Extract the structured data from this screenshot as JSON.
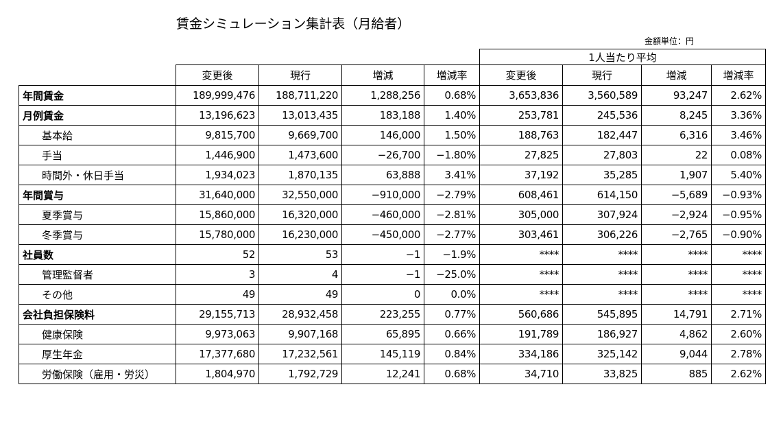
{
  "title": "賃金シミュレーション集計表（月給者）",
  "unit_label": "金額単位：円",
  "group_header": "1人当たり平均",
  "columns": [
    "変更後",
    "現行",
    "増減",
    "増減率",
    "変更後",
    "現行",
    "増減",
    "増減率"
  ],
  "rows": [
    {
      "label": "年間賃金",
      "bold": true,
      "sub": false,
      "values": [
        "189,999,476",
        "188,711,220",
        "1,288,256",
        "0.68%",
        "3,653,836",
        "3,560,589",
        "93,247",
        "2.62%"
      ]
    },
    {
      "label": "月例賃金",
      "bold": true,
      "sub": false,
      "values": [
        "13,196,623",
        "13,013,435",
        "183,188",
        "1.40%",
        "253,781",
        "245,536",
        "8,245",
        "3.36%"
      ]
    },
    {
      "label": "基本給",
      "bold": false,
      "sub": true,
      "values": [
        "9,815,700",
        "9,669,700",
        "146,000",
        "1.50%",
        "188,763",
        "182,447",
        "6,316",
        "3.46%"
      ]
    },
    {
      "label": "手当",
      "bold": false,
      "sub": true,
      "values": [
        "1,446,900",
        "1,473,600",
        "−26,700",
        "−1.80%",
        "27,825",
        "27,803",
        "22",
        "0.08%"
      ]
    },
    {
      "label": "時間外・休日手当",
      "bold": false,
      "sub": true,
      "values": [
        "1,934,023",
        "1,870,135",
        "63,888",
        "3.41%",
        "37,192",
        "35,285",
        "1,907",
        "5.40%"
      ]
    },
    {
      "label": "年間賞与",
      "bold": true,
      "sub": false,
      "values": [
        "31,640,000",
        "32,550,000",
        "−910,000",
        "−2.79%",
        "608,461",
        "614,150",
        "−5,689",
        "−0.93%"
      ]
    },
    {
      "label": "夏季賞与",
      "bold": false,
      "sub": true,
      "values": [
        "15,860,000",
        "16,320,000",
        "−460,000",
        "−2.81%",
        "305,000",
        "307,924",
        "−2,924",
        "−0.95%"
      ]
    },
    {
      "label": "冬季賞与",
      "bold": false,
      "sub": true,
      "values": [
        "15,780,000",
        "16,230,000",
        "−450,000",
        "−2.77%",
        "303,461",
        "306,226",
        "−2,765",
        "−0.90%"
      ]
    },
    {
      "label": "社員数",
      "bold": true,
      "sub": false,
      "values": [
        "52",
        "53",
        "−1",
        "−1.9%",
        "****",
        "****",
        "****",
        "****"
      ]
    },
    {
      "label": "管理監督者",
      "bold": false,
      "sub": true,
      "values": [
        "3",
        "4",
        "−1",
        "−25.0%",
        "****",
        "****",
        "****",
        "****"
      ]
    },
    {
      "label": "その他",
      "bold": false,
      "sub": true,
      "values": [
        "49",
        "49",
        "0",
        "0.0%",
        "****",
        "****",
        "****",
        "****"
      ]
    },
    {
      "label": "会社負担保険料",
      "bold": true,
      "sub": false,
      "values": [
        "29,155,713",
        "28,932,458",
        "223,255",
        "0.77%",
        "560,686",
        "545,895",
        "14,791",
        "2.71%"
      ]
    },
    {
      "label": "健康保険",
      "bold": false,
      "sub": true,
      "values": [
        "9,973,063",
        "9,907,168",
        "65,895",
        "0.66%",
        "191,789",
        "186,927",
        "4,862",
        "2.60%"
      ]
    },
    {
      "label": "厚生年金",
      "bold": false,
      "sub": true,
      "values": [
        "17,377,680",
        "17,232,561",
        "145,119",
        "0.84%",
        "334,186",
        "325,142",
        "9,044",
        "2.78%"
      ]
    },
    {
      "label": "労働保険（雇用・労災）",
      "bold": false,
      "sub": true,
      "values": [
        "1,804,970",
        "1,792,729",
        "12,241",
        "0.68%",
        "34,710",
        "33,825",
        "885",
        "2.62%"
      ]
    }
  ]
}
